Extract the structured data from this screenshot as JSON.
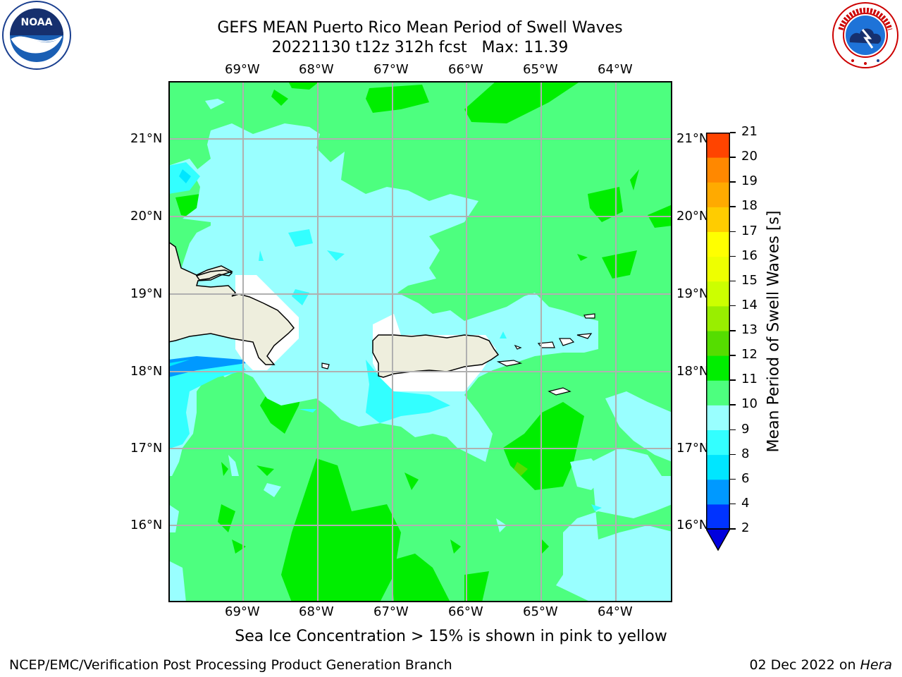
{
  "title": {
    "line1": "GEFS MEAN Puerto Rico Mean Period of Swell Waves",
    "line2": "20221130 t12z 312h fcst   Max: 11.39"
  },
  "map": {
    "lon_labels": [
      "69°W",
      "68°W",
      "67°W",
      "66°W",
      "65°W",
      "64°W"
    ],
    "lat_labels": [
      "21°N",
      "20°N",
      "19°N",
      "18°N",
      "17°N",
      "16°N"
    ]
  },
  "colorbar": {
    "title": "Mean Period of Swell Waves [s]",
    "ticks": [
      "2",
      "4",
      "6",
      "8",
      "9",
      "10",
      "11",
      "12",
      "13",
      "14",
      "15",
      "16",
      "17",
      "18",
      "19",
      "20",
      "21"
    ],
    "colors": [
      "#0033ff",
      "#0099ff",
      "#00e6ff",
      "#33ffff",
      "#99ffff",
      "#4dff7f",
      "#00ee00",
      "#55dd00",
      "#99ee00",
      "#ccff00",
      "#eeff00",
      "#ffff00",
      "#ffcc00",
      "#ffaa00",
      "#ff8800",
      "#ff4400",
      "#ff1100"
    ],
    "underflow_color": "#0000dd"
  },
  "subtitle": "Sea Ice Concentration > 15% is shown in pink to yellow",
  "footer": {
    "left": "NCEP/EMC/Verification Post Processing Product Generation Branch",
    "date": "02 Dec 2022 on ",
    "machine": "Hera"
  },
  "logos": {
    "noaa_text": "NOAA",
    "nws_text": "NATIONAL WEATHER SERVICE"
  }
}
